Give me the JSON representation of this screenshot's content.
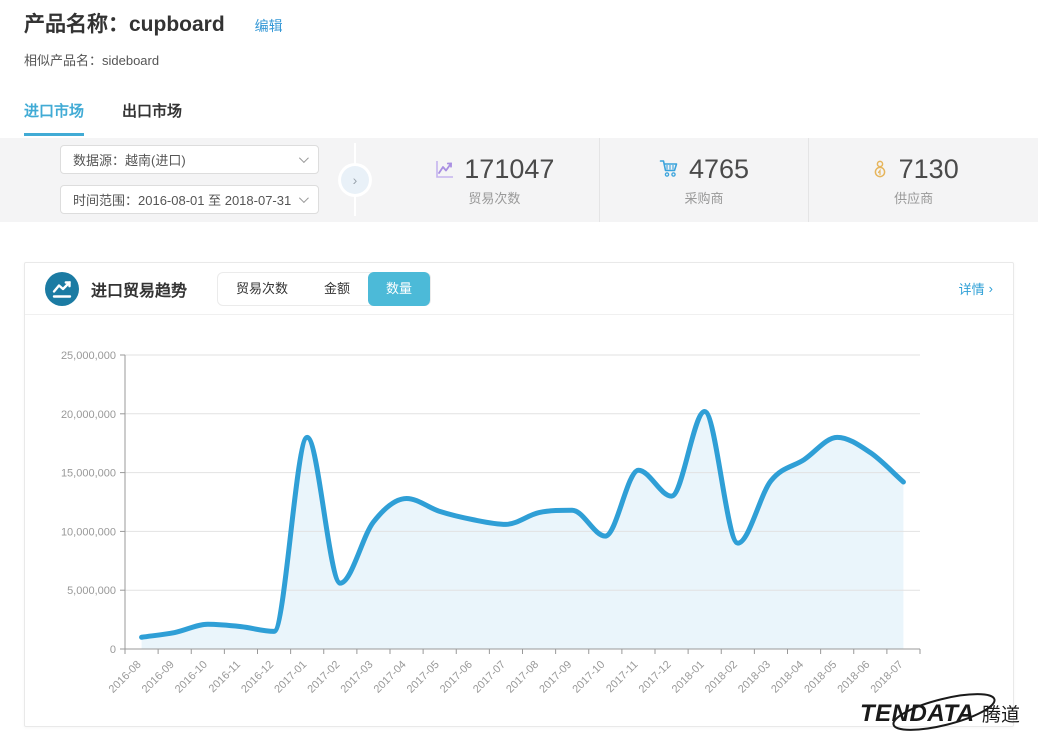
{
  "header": {
    "product_title": "产品名称：cupboard",
    "edit_label": "编辑",
    "similar_label": "相似产品名：sideboard"
  },
  "tabs": {
    "import_label": "进口市场",
    "export_label": "出口市场",
    "active": "进口市场"
  },
  "filters": {
    "data_source": "数据源：越南(进口)",
    "date_range": "时间范围：2016-08-01 至 2018-07-31",
    "expander_chevron": "›"
  },
  "stats": {
    "trades": {
      "icon": "line-chart-icon",
      "value": "171047",
      "label": "贸易次数",
      "color": "#a98fe2"
    },
    "buyers": {
      "icon": "cart-icon",
      "value": "4765",
      "label": "采购商",
      "color": "#3aa3dc"
    },
    "suppliers": {
      "icon": "medal-icon",
      "value": "7130",
      "label": "供应商",
      "color": "#e6b55c"
    }
  },
  "trend_card": {
    "title": "进口贸易趋势",
    "toggles": {
      "trades": "贸易次数",
      "amount": "金额",
      "quantity": "数量"
    },
    "active_toggle": "数量",
    "detail_label": "详情",
    "detail_chevron": "›"
  },
  "chart_data": {
    "type": "area",
    "title": "进口贸易趋势（数量）",
    "x": [
      "2016-08",
      "2016-09",
      "2016-10",
      "2016-11",
      "2016-12",
      "2017-01",
      "2017-02",
      "2017-03",
      "2017-04",
      "2017-05",
      "2017-06",
      "2017-07",
      "2017-08",
      "2017-09",
      "2017-10",
      "2017-11",
      "2017-12",
      "2018-01",
      "2018-02",
      "2018-03",
      "2018-04",
      "2018-05",
      "2018-06",
      "2018-07"
    ],
    "values": [
      1000000,
      1400000,
      2100000,
      1900000,
      1500000,
      18000000,
      5600000,
      10800000,
      12800000,
      11700000,
      11000000,
      10600000,
      11600000,
      11800000,
      9600000,
      15200000,
      13000000,
      20200000,
      9000000,
      14300000,
      16100000,
      18000000,
      16700000,
      14200000
    ],
    "ylim": [
      0,
      25000000
    ],
    "ytick_interval": 5000000,
    "grid": true,
    "smooth": true,
    "colors": {
      "line": "#2f9fd6",
      "fill": "rgba(47,159,214,0.10)",
      "gridline": "#e2e2e2",
      "axis": "#999999",
      "label": "#999999"
    }
  },
  "logo": {
    "brand": "TENDATA",
    "brand_cn": "腾道"
  },
  "theme": {
    "accent": "#41abd5",
    "active_button": "#4cbad8",
    "band_bg": "#f4f4f5"
  }
}
